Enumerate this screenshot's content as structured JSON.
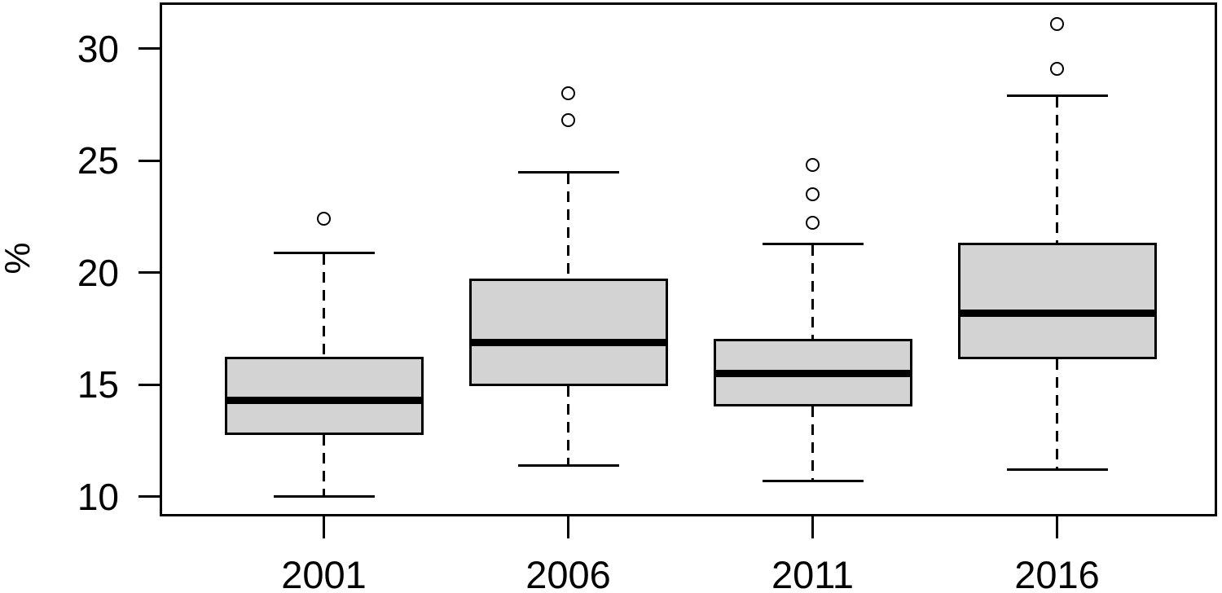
{
  "chart_data": {
    "type": "boxplot",
    "title": "",
    "xlabel": "",
    "ylabel": "%",
    "categories": [
      "2001",
      "2006",
      "2011",
      "2016"
    ],
    "y_ticks": [
      10,
      15,
      20,
      25,
      30
    ],
    "y_tick_labels": [
      "10",
      "15",
      "20",
      "25",
      "30"
    ],
    "ylim": [
      9.16,
      32.0
    ],
    "grid": "off",
    "legend": "none",
    "series": [
      {
        "category": "2001",
        "whisker_low": 10.0,
        "q1": 12.8,
        "median": 14.3,
        "q3": 16.2,
        "whisker_high": 20.9,
        "outliers": [
          22.4
        ]
      },
      {
        "category": "2006",
        "whisker_low": 11.4,
        "q1": 15.0,
        "median": 16.9,
        "q3": 19.7,
        "whisker_high": 24.5,
        "outliers": [
          26.8,
          28.0
        ]
      },
      {
        "category": "2011",
        "whisker_low": 10.7,
        "q1": 14.1,
        "median": 15.5,
        "q3": 17.0,
        "whisker_high": 21.3,
        "outliers": [
          22.2,
          23.5,
          24.8
        ]
      },
      {
        "category": "2016",
        "whisker_low": 11.2,
        "q1": 16.2,
        "median": 18.2,
        "q3": 21.3,
        "whisker_high": 27.9,
        "outliers": [
          29.1,
          31.1
        ]
      }
    ],
    "colors": {
      "box_fill": "#d3d3d3",
      "line": "#000000",
      "background": "#ffffff"
    }
  }
}
